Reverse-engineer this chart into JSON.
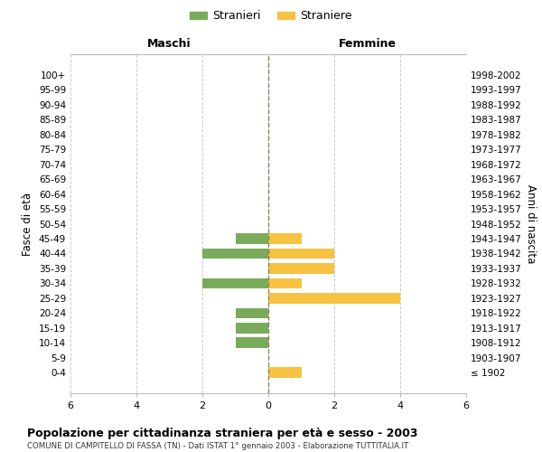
{
  "age_groups": [
    "100+",
    "95-99",
    "90-94",
    "85-89",
    "80-84",
    "75-79",
    "70-74",
    "65-69",
    "60-64",
    "55-59",
    "50-54",
    "45-49",
    "40-44",
    "35-39",
    "30-34",
    "25-29",
    "20-24",
    "15-19",
    "10-14",
    "5-9",
    "0-4"
  ],
  "birth_years": [
    "≤ 1902",
    "1903-1907",
    "1908-1912",
    "1913-1917",
    "1918-1922",
    "1923-1927",
    "1928-1932",
    "1933-1937",
    "1938-1942",
    "1943-1947",
    "1948-1952",
    "1953-1957",
    "1958-1962",
    "1963-1967",
    "1968-1972",
    "1973-1977",
    "1978-1982",
    "1983-1987",
    "1988-1992",
    "1993-1997",
    "1998-2002"
  ],
  "males": [
    0,
    0,
    0,
    0,
    0,
    0,
    0,
    0,
    0,
    0,
    0,
    1,
    2,
    0,
    2,
    0,
    1,
    1,
    1,
    0,
    0
  ],
  "females": [
    0,
    0,
    0,
    0,
    0,
    0,
    0,
    0,
    0,
    0,
    0,
    1,
    2,
    2,
    1,
    4,
    0,
    0,
    0,
    0,
    1
  ],
  "male_color": "#7aab5a",
  "female_color": "#f5c242",
  "title": "Popolazione per cittadinanza straniera per età e sesso - 2003",
  "subtitle": "COMUNE DI CAMPITELLO DI FASSA (TN) - Dati ISTAT 1° gennaio 2003 - Elaborazione TUTTITALIA.IT",
  "ylabel_left": "Fasce di età",
  "ylabel_right": "Anni di nascita",
  "xlabel_left": "Maschi",
  "xlabel_right": "Femmine",
  "legend_male": "Stranieri",
  "legend_female": "Straniere",
  "xlim": 6,
  "background_color": "#ffffff",
  "grid_color": "#cccccc"
}
